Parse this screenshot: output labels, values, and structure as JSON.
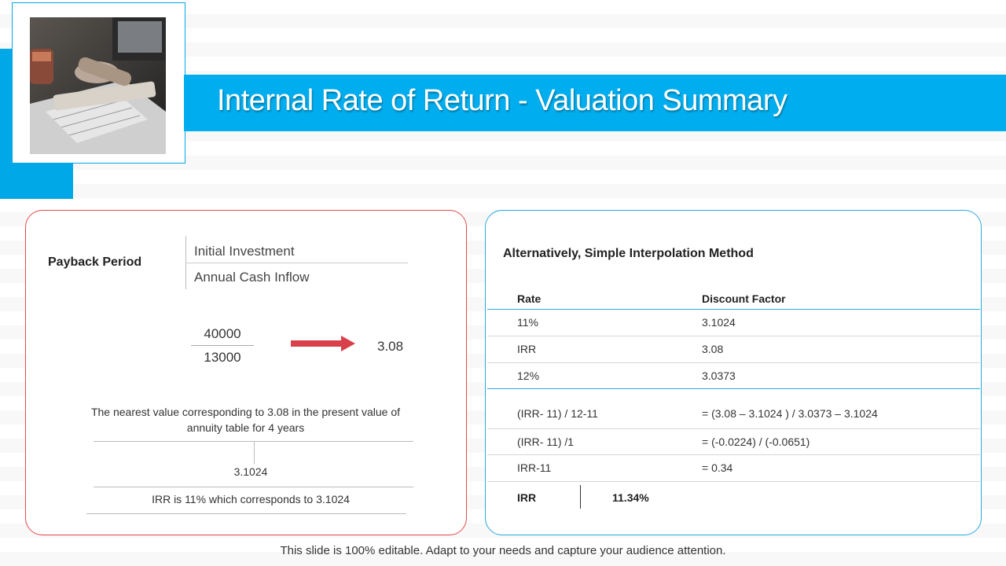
{
  "title": "Internal Rate of Return - Valuation Summary",
  "left_card": {
    "payback_label": "Payback Period",
    "formula_top": "Initial Investment",
    "formula_bottom": "Annual Cash Inflow",
    "numerator": "40000",
    "denominator": "13000",
    "result": "3.08",
    "note": "The nearest value corresponding to 3.08 in the present value of annuity table for 4 years",
    "nearest_value": "3.1024",
    "conclusion": "IRR is 11% which corresponds to 3.1024"
  },
  "right_card": {
    "heading": "Alternatively, Simple Interpolation Method",
    "columns": [
      "Rate",
      "Discount Factor"
    ],
    "rows": [
      [
        "11%",
        "3.1024"
      ],
      [
        "IRR",
        "3.08"
      ],
      [
        "12%",
        "3.0373"
      ]
    ],
    "calc_rows": [
      [
        "(IRR- 11) / 12-11",
        "= (3.08 – 3.1024 ) / 3.0373 – 3.1024"
      ],
      [
        "(IRR- 11) /1",
        "= (-0.0224) / (-0.0651)"
      ],
      [
        "IRR-11",
        "= 0.34"
      ]
    ],
    "result_label": "IRR",
    "result_value": "11.34%"
  },
  "footer": "This slide is 100% editable. Adapt to your needs and capture your audience attention.",
  "colors": {
    "accent": "#00aeef",
    "left_border": "#e04b4b",
    "arrow": "#d9414a"
  }
}
